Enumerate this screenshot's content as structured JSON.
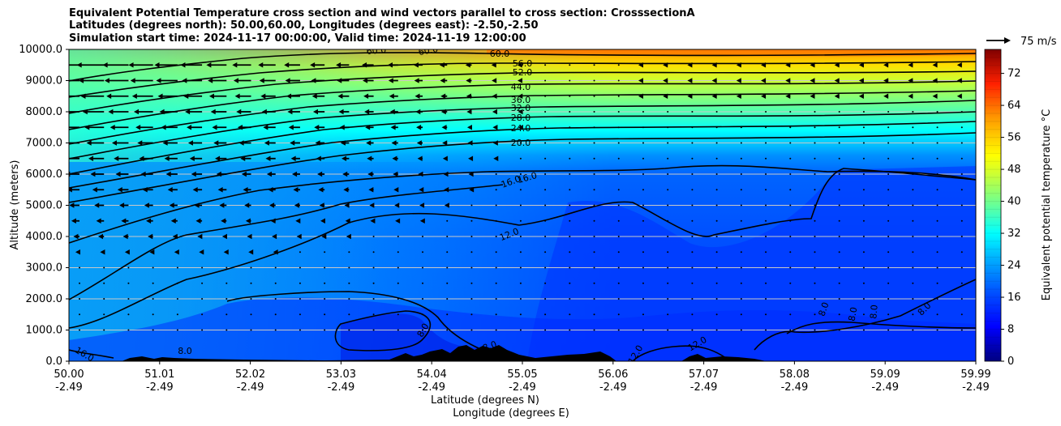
{
  "chart_data": {
    "type": "heatmap",
    "title_lines": [
      "Equivalent Potential Temperature cross section and wind vectors parallel to cross section: CrosssectionA",
      "Latitudes (degrees north): 50.00,60.00, Longitudes (degrees east): -2.50,-2.50",
      "Simulation start time: 2024-11-17 00:00:00, Valid time: 2024-11-19 12:00:00"
    ],
    "ylabel": "Altitude (meters)",
    "xlabel_lat": "Latitude (degrees N)",
    "xlabel_lon": "Longitude (degrees E)",
    "yticks": [
      "0.0",
      "1000.0",
      "2000.0",
      "3000.0",
      "4000.0",
      "5000.0",
      "6000.0",
      "7000.0",
      "8000.0",
      "9000.0",
      "10000.0"
    ],
    "ylim": [
      0,
      10000
    ],
    "xticks_lat": [
      "50.00",
      "51.01",
      "52.02",
      "53.03",
      "54.04",
      "55.05",
      "56.06",
      "57.07",
      "58.08",
      "59.09",
      "59.99"
    ],
    "xticks_lon": [
      "-2.49",
      "-2.49",
      "-2.49",
      "-2.49",
      "-2.49",
      "-2.49",
      "-2.49",
      "-2.49",
      "-2.49",
      "-2.49",
      "-2.49"
    ],
    "xlim": [
      50.0,
      59.99
    ],
    "grid": "horizontal",
    "colorbar": {
      "label": "Equivalent potential temperature $^\\circ$C",
      "ticks": [
        "0",
        "8",
        "16",
        "24",
        "32",
        "40",
        "48",
        "56",
        "64",
        "72"
      ],
      "range": [
        0,
        78
      ],
      "colormap": "jet"
    },
    "quiver_key": {
      "label": "75 m/s",
      "value": 75
    },
    "contour_levels": [
      8,
      12,
      16,
      20,
      24,
      28,
      32,
      36,
      44,
      52,
      56,
      60
    ],
    "contour_label_texts": [
      "60.0",
      "60.0",
      "60.0",
      "56.0",
      "52.0",
      "44.0",
      "36.0",
      "32.0",
      "28.0",
      "24.0",
      "20.0",
      "16.0",
      "16.0",
      "12.0",
      "8.0",
      "8.0",
      "8.0",
      "8.0",
      "8.0",
      "8.0",
      "12.0",
      "12.0",
      "16.0",
      "8.0"
    ]
  }
}
